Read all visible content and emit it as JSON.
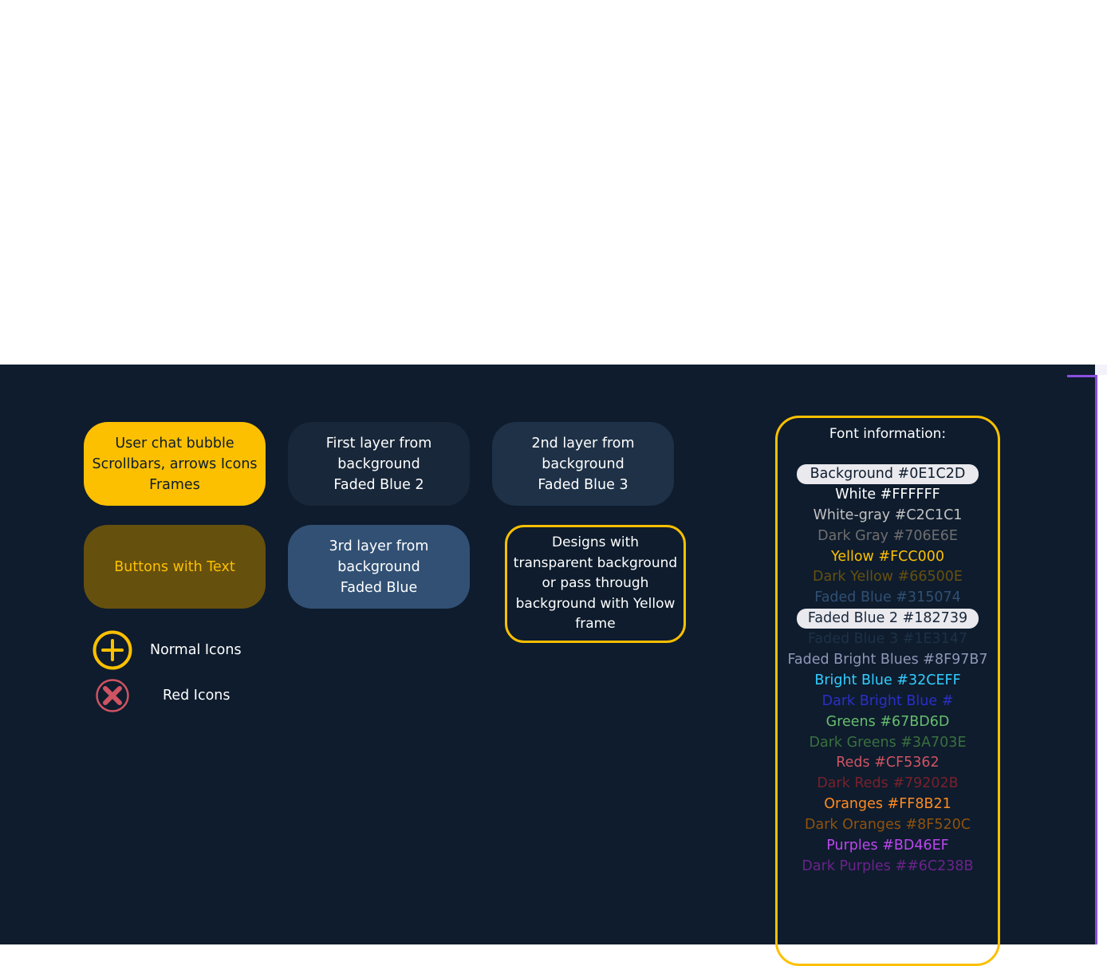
{
  "tiles": {
    "user_chat": [
      "User chat bubble",
      "Scrollbars, arrows Icons",
      "Frames"
    ],
    "first_layer": [
      "First layer from",
      "background",
      "Faded Blue 2"
    ],
    "second_layer": [
      "2nd layer from",
      "background",
      "Faded Blue 3"
    ],
    "buttons": [
      "Buttons with Text"
    ],
    "third_layer": [
      "3rd layer from",
      "background",
      "Faded Blue"
    ],
    "transparent_frame": [
      "Designs with",
      "transparent background",
      "or pass through",
      "background with Yellow",
      "frame"
    ]
  },
  "icons": {
    "normal_label": "Normal Icons",
    "red_label": "Red Icons",
    "normal_icon": "plus-circle-icon",
    "red_icon": "close-circle-icon"
  },
  "font_info": {
    "title": "Font information:",
    "items": [
      {
        "text": "Background #0E1C2D",
        "color": "#0E1C2D",
        "pill": true
      },
      {
        "text": "White #FFFFFF",
        "color": "#FFFFFF"
      },
      {
        "text": "White-gray #C2C1C1",
        "color": "#C2C1C1"
      },
      {
        "text": "Dark Gray #706E6E",
        "color": "#706E6E"
      },
      {
        "text": "Yellow #FCC000",
        "color": "#FCC000"
      },
      {
        "text": "Dark Yellow #66500E",
        "color": "#66500E"
      },
      {
        "text": "Faded Blue #315074",
        "color": "#315074"
      },
      {
        "text": "Faded Blue 2 #182739",
        "color": "#182739",
        "pill": true
      },
      {
        "text": "Faded Blue 3 #1E3147",
        "color": "#1E3147"
      },
      {
        "text": "Faded Bright Blues #8F97B7",
        "color": "#8F97B7"
      },
      {
        "text": "Bright Blue #32CEFF",
        "color": "#32CEFF"
      },
      {
        "text": "Dark Bright Blue #",
        "color": "#2B2FC9"
      },
      {
        "text": "Greens #67BD6D",
        "color": "#67BD6D"
      },
      {
        "text": "Dark Greens #3A703E",
        "color": "#3A703E"
      },
      {
        "text": "Reds #CF5362",
        "color": "#CF5362"
      },
      {
        "text": "Dark Reds #79202B",
        "color": "#79202B"
      },
      {
        "text": "Oranges #FF8B21",
        "color": "#FF8B21"
      },
      {
        "text": "Dark Oranges #8F520C",
        "color": "#8F520C"
      },
      {
        "text": "Purples #BD46EF",
        "color": "#BD46EF"
      },
      {
        "text": "Dark Purples ##6C238B",
        "color": "#6C238B"
      }
    ]
  },
  "colors": {
    "background": "#0E1C2D",
    "yellow": "#FCC000",
    "red": "#CF5362",
    "accent_edge": "#8A4FE0"
  }
}
